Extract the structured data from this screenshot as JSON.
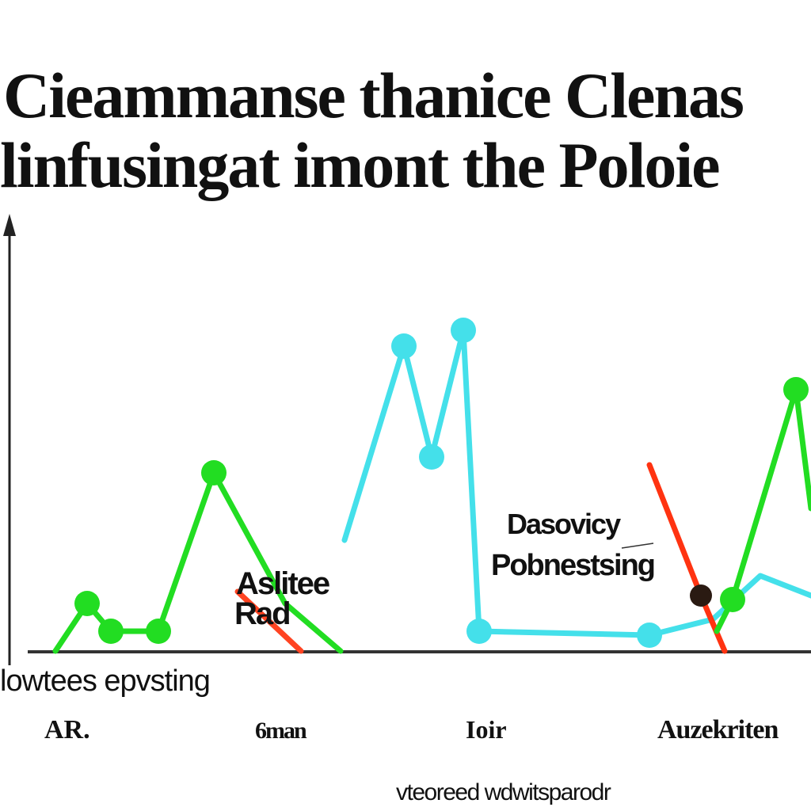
{
  "title_lines": [
    "Cieammanse thanice Clenas",
    "linfusingat imont the Poloie"
  ],
  "chart_data": {
    "type": "line",
    "title": "Cieammanse thanice Clenas linfusingat imont the Poloie",
    "xlabel": "vteoreed wdwitsparodr",
    "ylabel": "",
    "x_axis_caption": "lowtees epvsting",
    "x_tick_labels": [
      "AR.",
      "6man",
      "Ioir",
      "Auzekriten"
    ],
    "annotations": [
      {
        "text": "Aslitee",
        "series": "red"
      },
      {
        "text": "Rad",
        "series": "red"
      },
      {
        "text": "Dasovicy",
        "series": "cyan"
      },
      {
        "text": "Pobnestsing",
        "series": "cyan"
      }
    ],
    "xlim": [
      0,
      1000
    ],
    "ylim": [
      0,
      560
    ],
    "grid": false,
    "series": [
      {
        "color": "#22dd22",
        "points": [
          [
            70,
            0
          ],
          [
            110,
            60
          ],
          [
            140,
            25
          ],
          [
            200,
            25
          ],
          [
            270,
            225
          ],
          [
            360,
            60
          ],
          [
            430,
            0
          ]
        ],
        "markers": [
          [
            110,
            60
          ],
          [
            140,
            25
          ],
          [
            200,
            25
          ],
          [
            270,
            225
          ]
        ]
      },
      {
        "color": "#44e0ea",
        "points": [
          [
            435,
            140
          ],
          [
            510,
            385
          ],
          [
            545,
            245
          ],
          [
            585,
            405
          ],
          [
            605,
            25
          ],
          [
            820,
            20
          ],
          [
            900,
            40
          ],
          [
            960,
            95
          ],
          [
            1024,
            70
          ]
        ],
        "markers": [
          [
            510,
            385
          ],
          [
            545,
            245
          ],
          [
            585,
            405
          ],
          [
            605,
            25
          ],
          [
            820,
            20
          ]
        ]
      },
      {
        "color": "#ff4422",
        "points": [
          [
            300,
            75
          ],
          [
            380,
            0
          ]
        ],
        "markers": []
      },
      {
        "color": "#ff3311",
        "points": [
          [
            820,
            235
          ],
          [
            885,
            70
          ],
          [
            915,
            0
          ]
        ],
        "markers": []
      },
      {
        "color": "#22dd22",
        "points": [
          [
            905,
            25
          ],
          [
            925,
            65
          ],
          [
            1005,
            330
          ],
          [
            1024,
            180
          ]
        ],
        "markers": [
          [
            925,
            65
          ],
          [
            1005,
            330
          ]
        ]
      }
    ],
    "dark_marker": [
      885,
      70
    ]
  },
  "colors": {
    "green": "#22dd22",
    "cyan": "#44e0ea",
    "red": "#ff3311",
    "axis": "#222222"
  }
}
